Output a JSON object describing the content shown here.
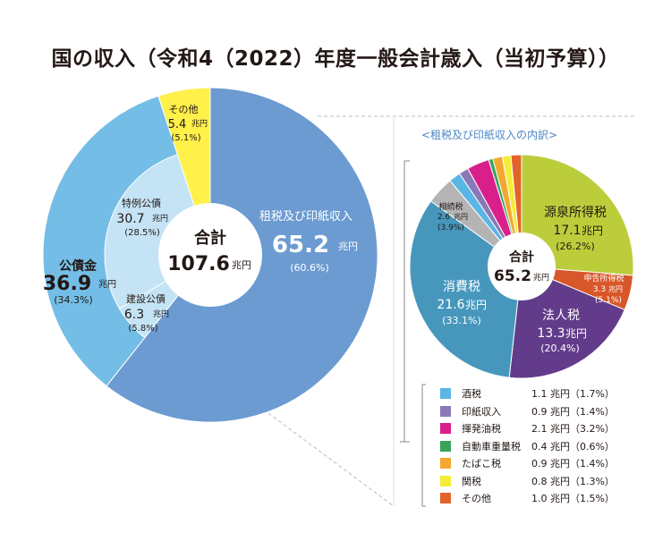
{
  "title": "国の収入（令和4（2022）年度一般会計歳入（当初予算））",
  "colors": {
    "tax_main": "#6b9bd1",
    "public_bonds": "#74bde6",
    "public_bonds_inner": "#c4e3f5",
    "other": "#fff04a",
    "breakdown_withholding": "#bccd3c",
    "breakdown_filing": "#d8572a",
    "breakdown_corporate": "#623c8b",
    "breakdown_consumption": "#4797bd",
    "breakdown_inheritance": "#b4b4b4"
  },
  "chart_data": [
    {
      "type": "pie",
      "title": "国の収入（令和4（2022）年度一般会計歳入（当初予算））",
      "center_label": "合計",
      "center_value": "107.6",
      "center_unit": "兆円",
      "slices": [
        {
          "name": "租税及び印紙収入",
          "value": 65.2,
          "unit": "兆円",
          "percent": "(60.6%)"
        },
        {
          "name": "公債金",
          "value": 36.9,
          "unit": "兆円",
          "percent": "(34.3%)",
          "children": [
            {
              "name": "特例公債",
              "value": 30.7,
              "unit": "兆円",
              "percent": "(28.5%)"
            },
            {
              "name": "建設公債",
              "value": 6.3,
              "unit": "兆円",
              "percent": "(5.8%)"
            }
          ]
        },
        {
          "name": "その他",
          "value": 5.4,
          "unit": "兆円",
          "percent": "(5.1%)"
        }
      ]
    },
    {
      "type": "pie",
      "title": "<租税及び印紙収入の内訳>",
      "center_label": "合計",
      "center_value": "65.2",
      "center_unit": "兆円",
      "slices": [
        {
          "name": "源泉所得税",
          "value": 17.1,
          "unit": "兆円",
          "percent": "(26.2%)"
        },
        {
          "name": "申告所得税",
          "value": 3.3,
          "unit": "兆円",
          "percent": "(5.1%)"
        },
        {
          "name": "法人税",
          "value": 13.3,
          "unit": "兆円",
          "percent": "(20.4%)"
        },
        {
          "name": "消費税",
          "value": 21.6,
          "unit": "兆円",
          "percent": "(33.1%)"
        },
        {
          "name": "相続税",
          "value": 2.6,
          "unit": "兆円",
          "percent": "(3.9%)"
        },
        {
          "name": "酒税",
          "value": 1.1,
          "unit": "兆円",
          "percent": "(1.7%)"
        },
        {
          "name": "印紙収入",
          "value": 0.9,
          "unit": "兆円",
          "percent": "(1.4%)"
        },
        {
          "name": "揮発油税",
          "value": 2.1,
          "unit": "兆円",
          "percent": "(3.2%)"
        },
        {
          "name": "自動車重量税",
          "value": 0.4,
          "unit": "兆円",
          "percent": "(0.6%)"
        },
        {
          "name": "たばこ税",
          "value": 0.9,
          "unit": "兆円",
          "percent": "(1.4%)"
        },
        {
          "name": "関税",
          "value": 0.8,
          "unit": "兆円",
          "percent": "(1.3%)"
        },
        {
          "name": "その他",
          "value": 1.0,
          "unit": "兆円",
          "percent": "(1.5%)"
        }
      ],
      "legend": [
        {
          "name": "酒税",
          "value": "1.1 兆円（1.7%）",
          "color": "#5ab6e4"
        },
        {
          "name": "印紙収入",
          "value": "0.9 兆円（1.4%）",
          "color": "#8a79b6"
        },
        {
          "name": "揮発油税",
          "value": "2.1 兆円（3.2%）",
          "color": "#d9208a"
        },
        {
          "name": "自動車重量税",
          "value": "0.4 兆円（0.6%）",
          "color": "#3aa35a"
        },
        {
          "name": "たばこ税",
          "value": "0.9 兆円（1.4%）",
          "color": "#f2a82f"
        },
        {
          "name": "関税",
          "value": "0.8 兆円（1.3%）",
          "color": "#f5ec3a"
        },
        {
          "name": "その他",
          "value": "1.0 兆円（1.5%）",
          "color": "#e2642a"
        }
      ]
    }
  ]
}
